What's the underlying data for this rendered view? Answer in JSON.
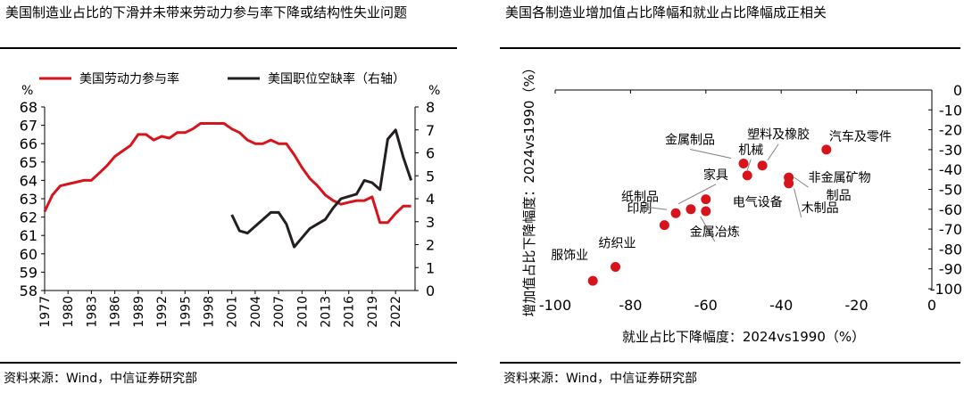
{
  "left": {
    "title": "美国制造业占比的下滑并未带来劳动力参与率下降或结构性失业问题",
    "source": "资料来源：Wind，中信证券研究部"
  },
  "right": {
    "title": "美国各制造业增加值占比降幅和就业占比降幅成正相关",
    "source": "资料来源：Wind，中信证券研究部"
  },
  "chart_data": [
    {
      "type": "line",
      "legend": [
        "美国劳动力参与率",
        "美国职位空缺率（右轴）"
      ],
      "y_unit_left": "%",
      "y_unit_right": "%",
      "ylim_left": [
        58,
        68
      ],
      "ylim_right": [
        0,
        8
      ],
      "yticks_left": [
        58,
        59,
        60,
        61,
        62,
        63,
        64,
        65,
        66,
        67,
        68
      ],
      "yticks_right": [
        0,
        1,
        2,
        3,
        4,
        5,
        6,
        7,
        8
      ],
      "xlim": [
        1977,
        2024.5
      ],
      "xticks": [
        1977,
        1980,
        1983,
        1986,
        1989,
        1992,
        1995,
        1998,
        2001,
        2004,
        2007,
        2010,
        2013,
        2016,
        2019,
        2022
      ],
      "series": [
        {
          "name": "美国劳动力参与率",
          "axis": "left",
          "color": "#d7141c",
          "x": [
            1977,
            1978,
            1979,
            1980,
            1981,
            1982,
            1983,
            1984,
            1985,
            1986,
            1987,
            1988,
            1989,
            1990,
            1991,
            1992,
            1993,
            1994,
            1995,
            1996,
            1997,
            1998,
            1999,
            2000,
            2001,
            2002,
            2003,
            2004,
            2005,
            2006,
            2007,
            2008,
            2009,
            2010,
            2011,
            2012,
            2013,
            2014,
            2015,
            2016,
            2017,
            2018,
            2019,
            2020,
            2021,
            2022,
            2023,
            2024
          ],
          "y": [
            62.3,
            63.2,
            63.7,
            63.8,
            63.9,
            64.0,
            64.0,
            64.4,
            64.8,
            65.3,
            65.6,
            65.9,
            66.5,
            66.5,
            66.2,
            66.4,
            66.3,
            66.6,
            66.6,
            66.8,
            67.1,
            67.1,
            67.1,
            67.1,
            66.8,
            66.6,
            66.2,
            66.0,
            66.0,
            66.2,
            66.0,
            66.0,
            65.4,
            64.7,
            64.1,
            63.7,
            63.2,
            62.9,
            62.7,
            62.8,
            62.9,
            62.9,
            63.1,
            61.7,
            61.7,
            62.2,
            62.6,
            62.6
          ]
        },
        {
          "name": "美国职位空缺率（右轴）",
          "axis": "right",
          "color": "#231f20",
          "x": [
            2001,
            2002,
            2003,
            2004,
            2005,
            2006,
            2007,
            2008,
            2009,
            2010,
            2011,
            2012,
            2013,
            2014,
            2015,
            2016,
            2017,
            2018,
            2019,
            2020,
            2021,
            2022,
            2023,
            2024
          ],
          "y": [
            3.3,
            2.6,
            2.5,
            2.8,
            3.1,
            3.4,
            3.4,
            2.9,
            1.9,
            2.3,
            2.7,
            2.9,
            3.1,
            3.6,
            4.0,
            4.1,
            4.2,
            4.8,
            4.7,
            4.4,
            6.6,
            7.0,
            5.8,
            4.8
          ]
        }
      ]
    },
    {
      "type": "scatter",
      "xlabel": "就业占比下降幅度：2024vs1990（%）",
      "ylabel": "增加值占比下降幅度：2024vs1990（%）",
      "xlim": [
        -100,
        0
      ],
      "ylim": [
        -100,
        0
      ],
      "xticks": [
        -100,
        -80,
        -60,
        -40,
        -20,
        0
      ],
      "yticks": [
        0,
        -10,
        -20,
        -30,
        -40,
        -50,
        -60,
        -70,
        -80,
        -90,
        -100
      ],
      "color": "#d7141c",
      "points": [
        {
          "label": "服饰业",
          "x": -90,
          "y": -96
        },
        {
          "label": "纺织业",
          "x": -84,
          "y": -89
        },
        {
          "label": "印刷",
          "x": -71,
          "y": -68
        },
        {
          "label": "纸制品",
          "x": -68,
          "y": -62
        },
        {
          "label": "家具",
          "x": -64,
          "y": -60
        },
        {
          "label": "金属冶炼",
          "x": -60,
          "y": -61
        },
        {
          "label": "电气设备",
          "x": -60,
          "y": -55
        },
        {
          "label": "金属制品",
          "x": -50,
          "y": -37
        },
        {
          "label": "机械",
          "x": -49,
          "y": -43
        },
        {
          "label": "塑料及橡胶",
          "x": -45,
          "y": -38
        },
        {
          "label": "汽车及零件",
          "x": -28,
          "y": -30
        },
        {
          "label": "非金属矿物制品",
          "x": -38,
          "y": -44
        },
        {
          "label": "木制品",
          "x": -38,
          "y": -47
        }
      ]
    }
  ]
}
